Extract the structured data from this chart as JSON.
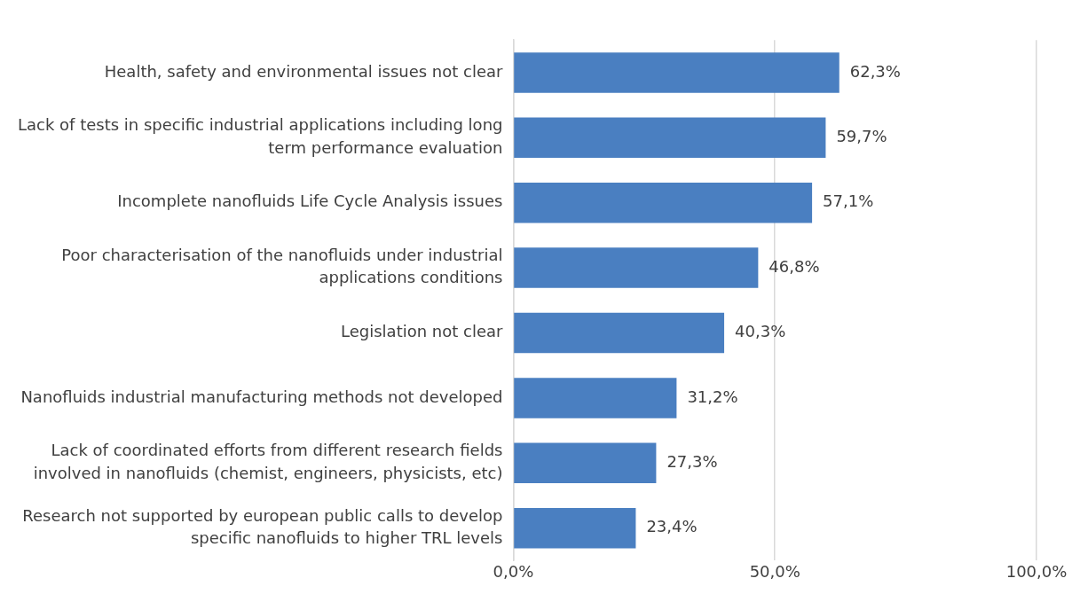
{
  "chart_data": {
    "type": "bar",
    "orientation": "horizontal",
    "categories": [
      "Health, safety and environmental issues not clear",
      "Lack of tests in specific industrial applications including long term performance evaluation",
      "Incomplete nanofluids Life Cycle Analysis issues",
      "Poor characterisation of the nanofluids under industrial applications conditions",
      "Legislation not clear",
      "Nanofluids industrial manufacturing methods not developed",
      "Lack of coordinated efforts from different research fields involved in nanofluids (chemist, engineers, physicists, etc)",
      "Research not supported by european public calls to develop specific nanofluids to higher TRL levels"
    ],
    "values": [
      62.3,
      59.7,
      57.1,
      46.8,
      40.3,
      31.2,
      27.3,
      23.4
    ],
    "value_labels": [
      "62,3%",
      "59,7%",
      "57,1%",
      "46,8%",
      "40,3%",
      "31,2%",
      "27,3%",
      "23,4%"
    ],
    "color": "#4a7fc1",
    "xlim": [
      0,
      100
    ],
    "xticks": [
      {
        "value": 0,
        "label": "0,0%"
      },
      {
        "value": 50,
        "label": "50,0%"
      },
      {
        "value": 100,
        "label": "100,0%"
      }
    ],
    "grid": "x",
    "legend": false
  }
}
